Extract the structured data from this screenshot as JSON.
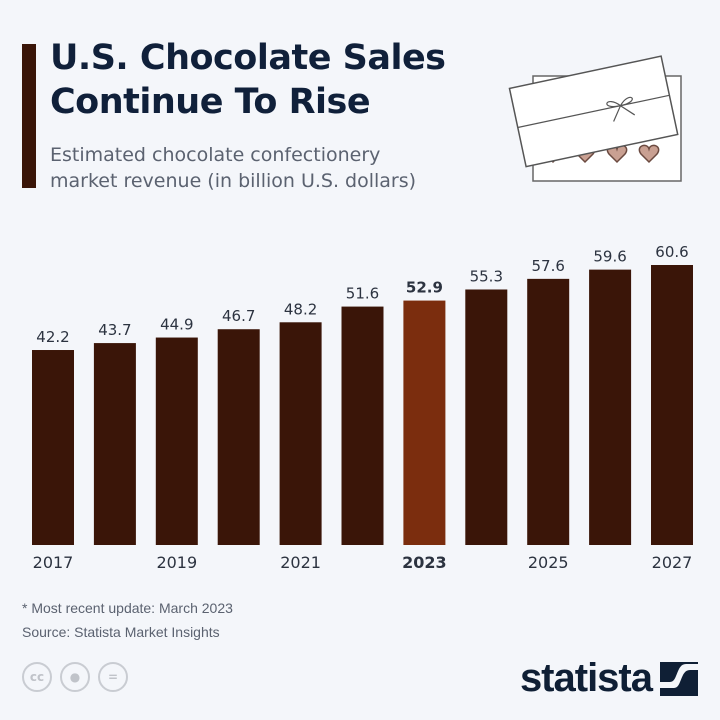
{
  "header": {
    "title_line1": "U.S. Chocolate Sales",
    "title_line2": "Continue To Rise",
    "subtitle_line1": "Estimated chocolate confectionery",
    "subtitle_line2": "market revenue (in billion U.S. dollars)"
  },
  "chart_data": {
    "type": "bar",
    "title": "U.S. Chocolate Sales Continue To Rise",
    "subtitle": "Estimated chocolate confectionery market revenue (in billion U.S. dollars)",
    "categories": [
      "2017",
      "2018",
      "2019",
      "2020",
      "2021",
      "2022",
      "2023",
      "2024",
      "2025",
      "2026",
      "2027"
    ],
    "values": [
      42.2,
      43.7,
      44.9,
      46.7,
      48.2,
      51.6,
      52.9,
      55.3,
      57.6,
      59.6,
      60.6
    ],
    "value_labels": [
      "42.2",
      "43.7",
      "44.9",
      "46.7",
      "48.2",
      "51.6",
      "52.9",
      "55.3",
      "57.6",
      "59.6",
      "60.6"
    ],
    "tick_labels": [
      "2017",
      "",
      "2019",
      "",
      "2021",
      "",
      "2023",
      "",
      "2025",
      "",
      "2027"
    ],
    "highlight": "2023",
    "ylim": [
      0,
      62
    ],
    "grid": false,
    "colors": {
      "bar": "#3a1508",
      "highlight": "#7b2d0e"
    }
  },
  "footer": {
    "note": "* Most recent update: March 2023",
    "source": "Source: Statista Market Insights",
    "cc_icons": [
      "cc-icon",
      "attribution-icon",
      "no-derivatives-icon"
    ],
    "cc_label": "cc",
    "eq_label": "=",
    "logo": "statista"
  }
}
